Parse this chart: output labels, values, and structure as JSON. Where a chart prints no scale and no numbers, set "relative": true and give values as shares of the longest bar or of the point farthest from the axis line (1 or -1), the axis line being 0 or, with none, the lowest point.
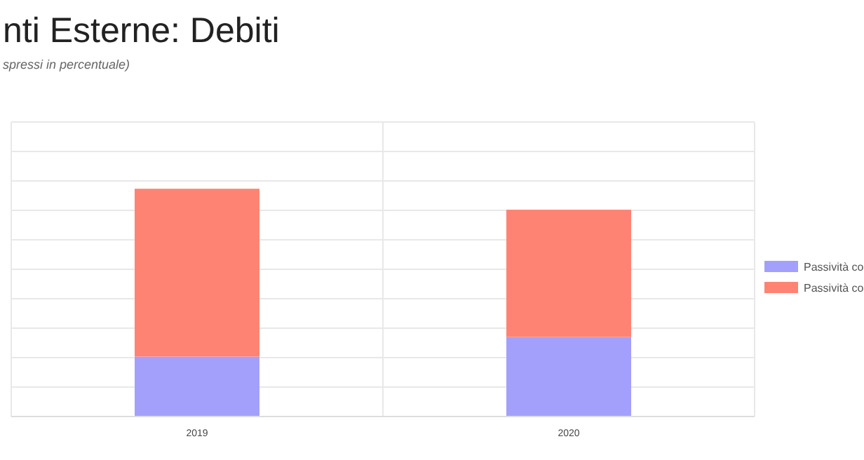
{
  "chart_data": {
    "type": "bar",
    "title": "nti Esterne: Debiti",
    "subtitle": "spressi in percentuale)",
    "categories": [
      "2019",
      "2020"
    ],
    "stacked": true,
    "relative": true,
    "grid": true,
    "legend": "right",
    "series": [
      {
        "name": "Passività co",
        "color": "#a3a0fb",
        "values": [
          0.263,
          0.349
        ]
      },
      {
        "name": "Passività co",
        "color": "#ff8373",
        "values": [
          0.737,
          0.559
        ]
      }
    ]
  }
}
